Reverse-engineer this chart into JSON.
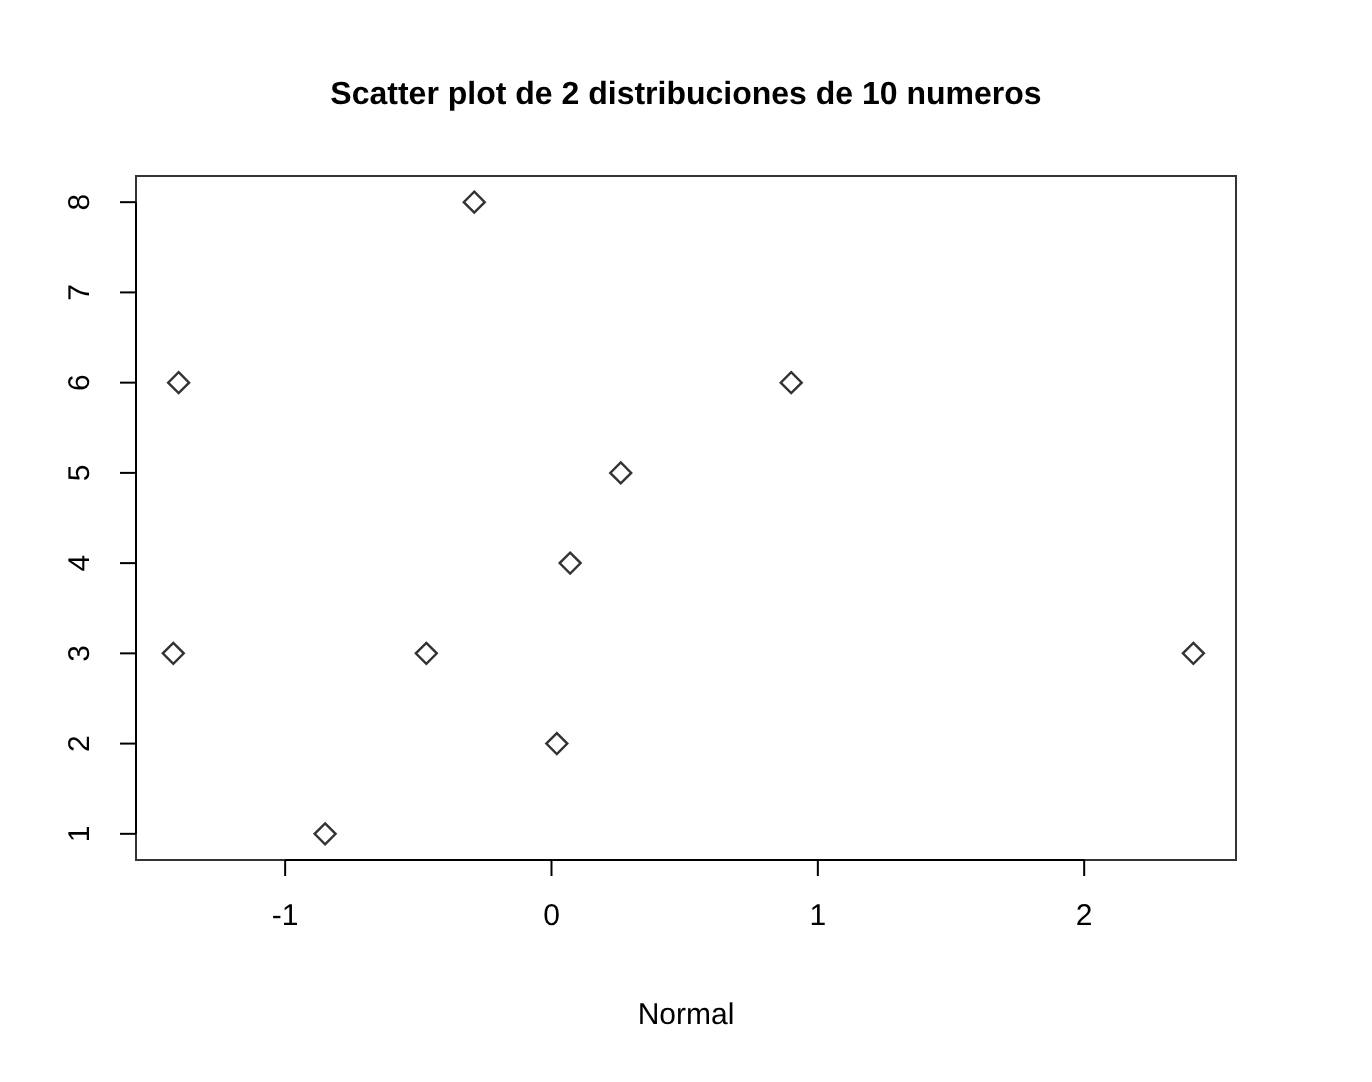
{
  "chart_data": {
    "type": "scatter",
    "title": "Scatter plot de 2 distribuciones de 10 numeros",
    "xlabel": "Normal",
    "x": [
      -1.4,
      -1.42,
      -0.85,
      -0.47,
      -0.29,
      0.02,
      0.07,
      0.26,
      0.9,
      2.41
    ],
    "series": [
      {
        "color": "#333333",
        "values": [
          6,
          3,
          1,
          3,
          8,
          2,
          4,
          5,
          6,
          3
        ]
      }
    ],
    "xlim": [
      -1.56,
      2.57
    ],
    "ylim": [
      0.71,
      8.29
    ],
    "xticks": [
      -1,
      0,
      1,
      2
    ],
    "yticks": [
      1,
      2,
      3,
      4,
      5,
      6,
      7,
      8
    ],
    "marker": "diamond"
  }
}
